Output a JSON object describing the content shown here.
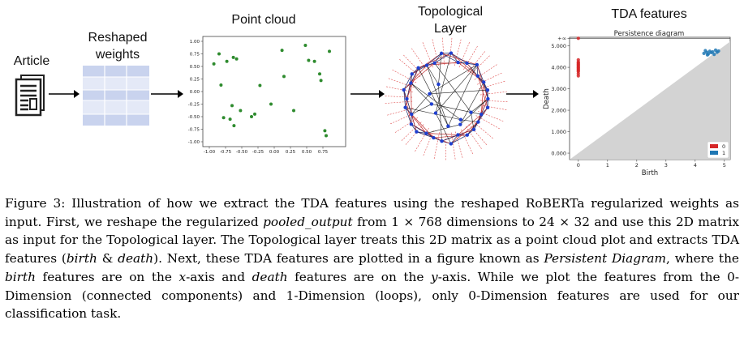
{
  "stages": {
    "article": "Article",
    "weights_line1": "Reshaped",
    "weights_line2": "weights",
    "point_cloud": "Point cloud",
    "topo_line1": "Topological",
    "topo_line2": "Layer",
    "tda": "TDA features"
  },
  "colors": {
    "green": "#2e8b2e",
    "blue": "#1f3fd0",
    "red": "#d62728",
    "dim1": "#1f77b4",
    "grid": "#c9d3ee",
    "gray_region": "#d3d3d3"
  },
  "icons": [
    "document-icon",
    "arrow-right-icon"
  ],
  "chart_data": [
    {
      "type": "scatter",
      "title": "Point cloud",
      "xlim": [
        -1.0,
        1.0
      ],
      "ylim": [
        -1.0,
        1.0
      ],
      "xticks": [
        "-1.00",
        "-0.75",
        "-0.50",
        "-0.25",
        "0.00",
        "0.25",
        "0.50",
        "0.75"
      ],
      "yticks": [
        "1.00",
        "0.75",
        "0.50",
        "0.25",
        "0.00",
        "-0.25",
        "-0.50",
        "-0.75",
        "-1.00"
      ],
      "points": [
        [
          -0.93,
          0.55
        ],
        [
          -0.85,
          0.75
        ],
        [
          -0.82,
          0.13
        ],
        [
          -0.73,
          0.6
        ],
        [
          -0.63,
          0.68
        ],
        [
          -0.58,
          0.65
        ],
        [
          -0.65,
          -0.28
        ],
        [
          -0.52,
          -0.38
        ],
        [
          -0.78,
          -0.52
        ],
        [
          -0.68,
          -0.55
        ],
        [
          -0.62,
          -0.68
        ],
        [
          -0.3,
          -0.45
        ],
        [
          -0.22,
          0.12
        ],
        [
          -0.35,
          -0.5
        ],
        [
          -0.05,
          -0.25
        ],
        [
          0.12,
          0.82
        ],
        [
          0.15,
          0.3
        ],
        [
          0.3,
          -0.38
        ],
        [
          0.48,
          0.92
        ],
        [
          0.53,
          0.62
        ],
        [
          0.62,
          0.6
        ],
        [
          0.7,
          0.35
        ],
        [
          0.72,
          0.22
        ],
        [
          0.78,
          -0.78
        ],
        [
          0.8,
          -0.88
        ],
        [
          0.85,
          0.8
        ]
      ]
    },
    {
      "type": "scatter",
      "title": "Persistence diagram",
      "xlabel": "Birth",
      "ylabel": "Death",
      "xlim": [
        -0.3,
        5.2
      ],
      "ylim": [
        -0.3,
        5.4
      ],
      "xticks": [
        "0",
        "1",
        "2",
        "3",
        "4",
        "5"
      ],
      "yticks": [
        "+∞",
        "5.000",
        "4.000",
        "3.000",
        "2.000",
        "1.000",
        "0.000"
      ],
      "legend": [
        "0",
        "1"
      ],
      "legend_position": "lower-right",
      "series": [
        {
          "name": "0",
          "color": "#d62728",
          "points": [
            [
              0,
              5.35
            ],
            [
              0,
              4.35
            ],
            [
              0,
              4.25
            ],
            [
              0,
              4.2
            ],
            [
              0,
              4.15
            ],
            [
              0,
              4.1
            ],
            [
              0,
              4.05
            ],
            [
              0,
              4.0
            ],
            [
              0,
              3.95
            ],
            [
              0,
              3.9
            ],
            [
              0,
              3.85
            ],
            [
              0,
              3.8
            ],
            [
              0,
              3.7
            ],
            [
              0,
              3.6
            ]
          ]
        },
        {
          "name": "1",
          "color": "#1f77b4",
          "points": [
            [
              4.3,
              4.65
            ],
            [
              4.4,
              4.7
            ],
            [
              4.45,
              4.62
            ],
            [
              4.5,
              4.75
            ],
            [
              4.55,
              4.68
            ],
            [
              4.6,
              4.72
            ],
            [
              4.65,
              4.6
            ],
            [
              4.7,
              4.8
            ],
            [
              4.35,
              4.78
            ],
            [
              4.75,
              4.7
            ],
            [
              4.8,
              4.76
            ],
            [
              4.42,
              4.58
            ]
          ]
        }
      ]
    }
  ],
  "caption": {
    "p1": "Figure 3: Illustration of how we extract the TDA features using the reshaped RoBERTa regularized weights as input. First, we reshape the regularized ",
    "em1": "pooled_output",
    "p2": " from 1 × 768 dimensions to 24 × 32 and use this 2D matrix as input for the Topological layer. The Topological layer treats this 2D matrix as a point cloud plot and extracts TDA features (",
    "em2": "birth",
    "p3": " & ",
    "em3": "death",
    "p4": "). Next, these TDA features are plotted in a figure known as ",
    "em4": "Persistent Diagram",
    "p5": ", where the ",
    "em5": "birth",
    "p6": " features are on the ",
    "em6": "x",
    "p7": "-axis and ",
    "em7": "death",
    "p8": " features are on the ",
    "em8": "y",
    "p9": "-axis. While we plot the features from the 0-Dimension (connected components) and 1-Dimension (loops), only 0-Dimension features are used for our classification task."
  }
}
